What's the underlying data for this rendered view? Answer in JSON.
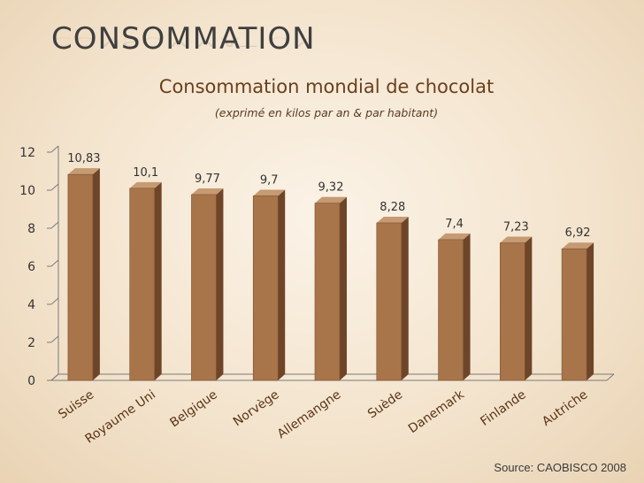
{
  "slide": {
    "title": "CONSOMMATION",
    "source": "Source: CAOBISCO 2008"
  },
  "colors": {
    "bar_front": "#a8744a",
    "bar_side": "#6e4528",
    "bar_top": "#c69a72",
    "title": "#6a3f1c",
    "axis": "#7a7a7a"
  },
  "chart_data": {
    "type": "bar",
    "title": "Consommation mondial de chocolat",
    "subtitle": "(exprimé en kilos par an & par habitant)",
    "categories": [
      "Suisse",
      "Royaume Uni",
      "Belgique",
      "Norvège",
      "Allemangne",
      "Suède",
      "Danemark",
      "Finlande",
      "Autriche"
    ],
    "values": [
      10.83,
      10.1,
      9.77,
      9.7,
      9.32,
      8.28,
      7.4,
      7.23,
      6.92
    ],
    "data_labels": [
      "10,83",
      "10,1",
      "9,77",
      "9,7",
      "9,32",
      "8,28",
      "7,4",
      "7,23",
      "6,92"
    ],
    "yticks": [
      0,
      2,
      4,
      6,
      8,
      10,
      12
    ],
    "ylim": [
      0,
      12
    ],
    "xlabel": "",
    "ylabel": "",
    "grid": false,
    "legend": "none",
    "style": "3d-bars"
  }
}
